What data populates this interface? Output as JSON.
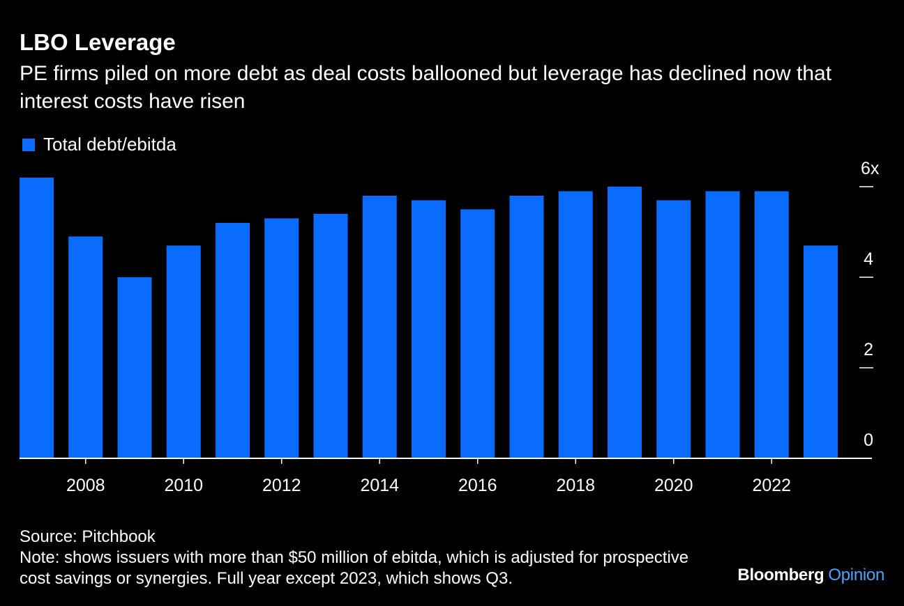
{
  "header": {
    "title": "LBO Leverage",
    "subtitle": "PE firms piled on more debt as deal costs ballooned but leverage has declined now that interest costs have risen"
  },
  "legend": {
    "label": "Total debt/ebitda"
  },
  "colors": {
    "bar": "#0A6CFF",
    "background": "#000000",
    "text": "#FFFFFF"
  },
  "chart_data": {
    "type": "bar",
    "categories": [
      "2007",
      "2008",
      "2009",
      "2010",
      "2011",
      "2012",
      "2013",
      "2014",
      "2015",
      "2016",
      "2017",
      "2018",
      "2019",
      "2020",
      "2021",
      "2022",
      "2023"
    ],
    "series": [
      {
        "name": "Total debt/ebitda",
        "values": [
          6.2,
          4.9,
          4.0,
          4.7,
          5.2,
          5.3,
          5.4,
          5.8,
          5.7,
          5.5,
          5.8,
          5.9,
          6.0,
          5.7,
          5.9,
          5.9,
          4.7
        ]
      }
    ],
    "x_tick_labels": [
      "2008",
      "2010",
      "2012",
      "2014",
      "2016",
      "2018",
      "2020",
      "2022"
    ],
    "y_ticks": [
      0,
      2,
      4,
      6
    ],
    "y_tick_labels": [
      "0",
      "2",
      "4",
      "6x"
    ],
    "ylim": [
      0,
      6.2
    ],
    "y_axis_side": "right",
    "grid": false,
    "legend_position": "top-left"
  },
  "footer": {
    "source": "Source: Pitchbook",
    "note": "Note: shows issuers with more than $50 million of ebitda, which is adjusted for prospective cost savings or synergies. Full year except 2023, which shows Q3."
  },
  "branding": {
    "name": "Bloomberg",
    "section": "Opinion",
    "section_color": "#4DA3FF"
  }
}
